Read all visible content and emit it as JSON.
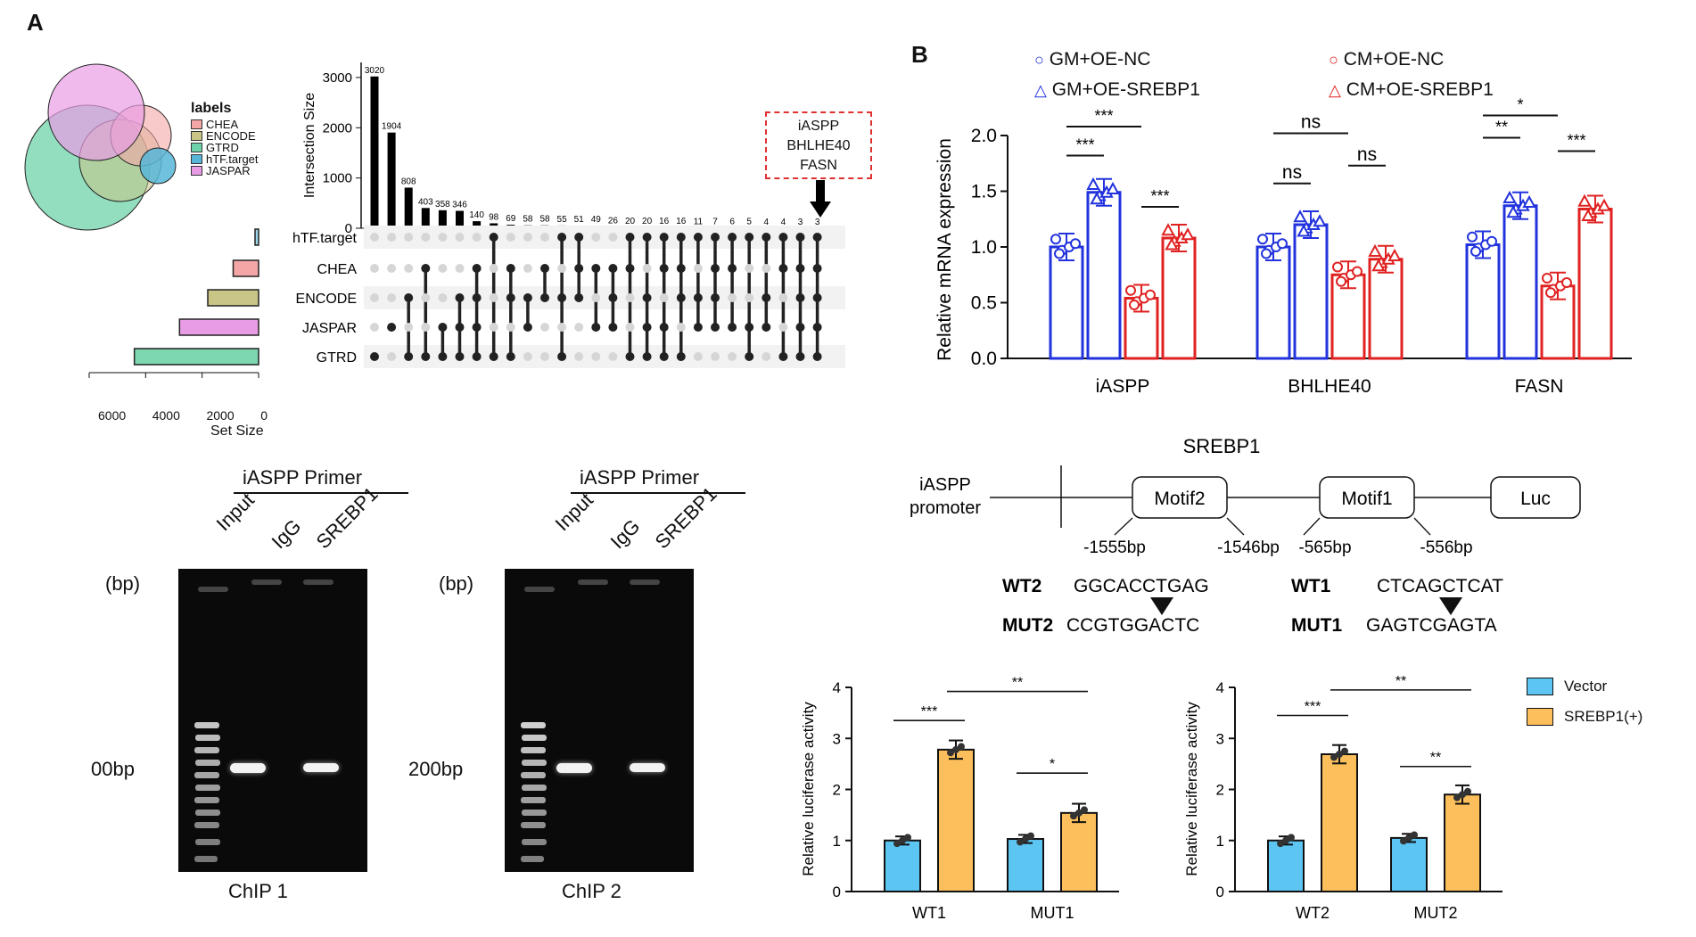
{
  "panel_labels": {
    "a": "A",
    "b": "B"
  },
  "upset": {
    "legend_title": "labels",
    "legend_items": [
      {
        "name": "CHEA",
        "color": "#f4a6a6"
      },
      {
        "name": "ENCODE",
        "color": "#c9c587"
      },
      {
        "name": "GTRD",
        "color": "#6dd3a8"
      },
      {
        "name": "hTF.target",
        "color": "#57b6d8"
      },
      {
        "name": "JASPAR",
        "color": "#e99ce6"
      }
    ],
    "callout": [
      "iASPP",
      "BHLHE40",
      "FASN"
    ],
    "set_size_label": "Set Size",
    "set_size_ticks": [
      "6000",
      "4000",
      "2000",
      "0"
    ]
  },
  "chart_data": [
    {
      "type": "bar",
      "ylabel": "Intersection Size",
      "ylim": [
        0,
        3300
      ],
      "yticks": [
        0,
        1000,
        2000,
        3000
      ],
      "values": [
        3020,
        1904,
        808,
        403,
        358,
        346,
        140,
        98,
        69,
        58,
        58,
        55,
        51,
        49,
        26,
        20,
        20,
        16,
        16,
        11,
        7,
        6,
        5,
        4,
        4,
        3,
        3
      ],
      "value_labels": [
        "3020",
        "1904",
        "808",
        "403",
        "358",
        "346",
        "140",
        "98",
        "69",
        "58",
        "58",
        "55",
        "51",
        "49",
        "26",
        "20",
        "20",
        "16",
        "16",
        "11",
        "7",
        "6",
        "5",
        "4",
        "4",
        "3",
        "3"
      ],
      "sets": [
        "hTF.target",
        "CHEA",
        "ENCODE",
        "JASPAR",
        "GTRD"
      ],
      "set_sizes": [
        120,
        900,
        1800,
        2800,
        4400
      ],
      "set_colors": [
        "#9fd7ea",
        "#f4a6a6",
        "#c9c587",
        "#e99ce6",
        "#7dd8b0"
      ],
      "memberships": [
        [
          4
        ],
        [
          3
        ],
        [
          2,
          4
        ],
        [
          1,
          4
        ],
        [
          3,
          4
        ],
        [
          2,
          3,
          4
        ],
        [
          1,
          2,
          3,
          4
        ],
        [
          0,
          4
        ],
        [
          1,
          2,
          4
        ],
        [
          2,
          3
        ],
        [
          1,
          2
        ],
        [
          0,
          2,
          4
        ],
        [
          0,
          1,
          2
        ],
        [
          1,
          3
        ],
        [
          1,
          2,
          3
        ],
        [
          0,
          1,
          4
        ],
        [
          0,
          2,
          3,
          4
        ],
        [
          0,
          1,
          3,
          4
        ],
        [
          0,
          1,
          2,
          4
        ],
        [
          0,
          2,
          3
        ],
        [
          0,
          1,
          2,
          3
        ],
        [
          0,
          1,
          3
        ],
        [
          0,
          3,
          4
        ],
        [
          0,
          2,
          3
        ],
        [
          0,
          1,
          4
        ],
        [
          0,
          1,
          2,
          3,
          4
        ],
        [
          0,
          1,
          2,
          3,
          4
        ]
      ]
    },
    {
      "type": "bar",
      "ylabel": "Relative mRNA expression",
      "ylim": [
        0,
        2.0
      ],
      "yticks": [
        "0.0",
        "0.5",
        "1.0",
        "1.5",
        "2.0"
      ],
      "categories": [
        "iASPP",
        "BHLHE40",
        "FASN"
      ],
      "series": [
        {
          "name": "GM+OE-NC",
          "values": [
            1.0,
            1.0,
            1.02
          ],
          "color": "#2233dd",
          "marker": "circle"
        },
        {
          "name": "GM+OE-SREBP1",
          "values": [
            1.49,
            1.2,
            1.37
          ],
          "color": "#2233dd",
          "marker": "triangle"
        },
        {
          "name": "CM+OE-NC",
          "values": [
            0.54,
            0.75,
            0.65
          ],
          "color": "#e02222",
          "marker": "circle"
        },
        {
          "name": "CM+OE-SREBP1",
          "values": [
            1.08,
            0.89,
            1.34
          ],
          "color": "#e02222",
          "marker": "triangle"
        }
      ],
      "significance": [
        {
          "cat": 0,
          "from": 0,
          "to": 1,
          "label": "***",
          "y": 1.82
        },
        {
          "cat": 0,
          "from": 0,
          "to": 2,
          "label": "***",
          "y": 2.08
        },
        {
          "cat": 0,
          "from": 2,
          "to": 3,
          "label": "***",
          "y": 1.36
        },
        {
          "cat": 1,
          "from": 0,
          "to": 1,
          "label": "ns",
          "y": 1.57
        },
        {
          "cat": 1,
          "from": 0,
          "to": 2,
          "label": "ns",
          "y": 2.02
        },
        {
          "cat": 1,
          "from": 2,
          "to": 3,
          "label": "ns",
          "y": 1.73
        },
        {
          "cat": 2,
          "from": 0,
          "to": 1,
          "label": "**",
          "y": 1.98
        },
        {
          "cat": 2,
          "from": 0,
          "to": 2,
          "label": "*",
          "y": 2.18
        },
        {
          "cat": 2,
          "from": 2,
          "to": 3,
          "label": "***",
          "y": 1.86
        }
      ]
    },
    {
      "type": "bar",
      "ylabel": "Relative luciferase activity",
      "ylim": [
        0,
        4
      ],
      "yticks": [
        "0",
        "1",
        "2",
        "3",
        "4"
      ],
      "categories": [
        "WT1",
        "MUT1"
      ],
      "series": [
        {
          "name": "Vector",
          "values": [
            1.0,
            1.03
          ],
          "color": "#5cc5f2"
        },
        {
          "name": "SREBP1(+)",
          "values": [
            2.78,
            1.54
          ],
          "color": "#fcbf5c"
        }
      ],
      "significance": [
        {
          "label": "***",
          "y": 3.35,
          "x1": "0a",
          "x2": "0b"
        },
        {
          "label": "**",
          "y": 3.92,
          "x1": "0b",
          "x2": "1b"
        },
        {
          "label": "*",
          "y": 2.32,
          "x1": "1a",
          "x2": "1b"
        }
      ]
    },
    {
      "type": "bar",
      "ylabel": "Relative luciferase activity",
      "ylim": [
        0,
        4
      ],
      "yticks": [
        "0",
        "1",
        "2",
        "3",
        "4"
      ],
      "categories": [
        "WT2",
        "MUT2"
      ],
      "series": [
        {
          "name": "Vector",
          "values": [
            1.0,
            1.05
          ],
          "color": "#5cc5f2"
        },
        {
          "name": "SREBP1(+)",
          "values": [
            2.69,
            1.9
          ],
          "color": "#fcbf5c"
        }
      ],
      "significance": [
        {
          "label": "***",
          "y": 3.45,
          "x1": "0a",
          "x2": "0b"
        },
        {
          "label": "**",
          "y": 3.95,
          "x1": "0b",
          "x2": "1b"
        },
        {
          "label": "**",
          "y": 2.45,
          "x1": "1a",
          "x2": "1b"
        }
      ]
    }
  ],
  "chip": {
    "primer_title": "iASPP Primer",
    "lanes": [
      "Input",
      "IgG",
      "SREBP1"
    ],
    "unit": "(bp)",
    "marker_1": "00bp",
    "marker_2": "200bp",
    "caption_1": "ChIP 1",
    "caption_2": "ChIP 2"
  },
  "promoter": {
    "title": "SREBP1",
    "label": [
      "iASPP",
      "promoter"
    ],
    "boxes": [
      "Motif2",
      "Motif1",
      "Luc"
    ],
    "positions": [
      "-1555bp",
      "-1546bp",
      "-565bp",
      "-556bp"
    ],
    "wt2_label": "WT2",
    "wt2_seq": "GGCACCTGAG",
    "wt1_label": "WT1",
    "wt1_seq": "CTCAGCTCAT",
    "mut2_label": "MUT2",
    "mut2_seq": "CCGTGGACTC",
    "mut1_label": "MUT1",
    "mut1_seq": "GAGTCGAGTA"
  }
}
